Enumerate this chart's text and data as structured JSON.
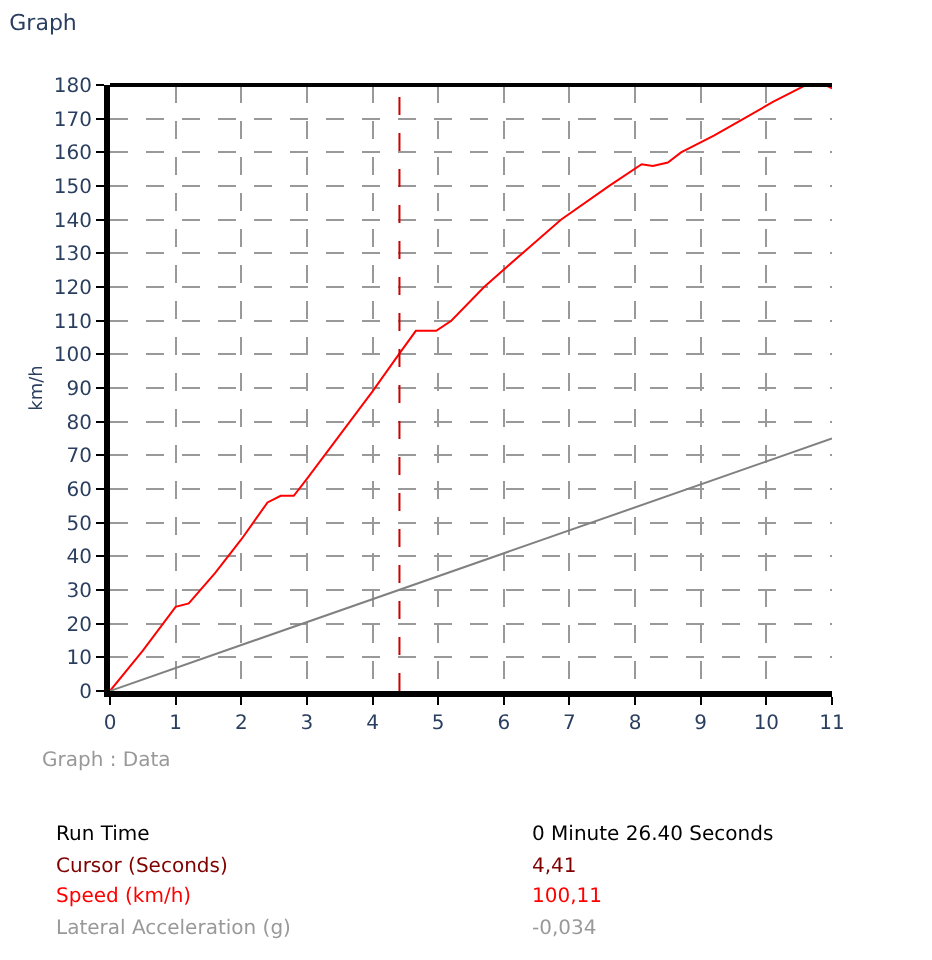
{
  "chart_data": {
    "type": "line",
    "title": "Graph",
    "ylabel": "km/h",
    "x": [
      0,
      0.5,
      1,
      1.2,
      1.6,
      2,
      2.4,
      2.6,
      2.8,
      3,
      3.5,
      4,
      4.4,
      4.66,
      4.97,
      5.2,
      5.7,
      6.28,
      6.87,
      7.6,
      8.1,
      8.27,
      8.5,
      8.7,
      9.2,
      9.65,
      10.1,
      10.6,
      10.9,
      11
    ],
    "series": [
      {
        "color": "#ff0000",
        "values": [
          0,
          12,
          25,
          26,
          35,
          45,
          56,
          58,
          58,
          63,
          76,
          89,
          100,
          107,
          107,
          110,
          120,
          130,
          140,
          150,
          156.5,
          156,
          157,
          160,
          165,
          170,
          175,
          180,
          180,
          179
        ]
      },
      {
        "color": "#808080",
        "x": [
          0,
          11
        ],
        "values": [
          0,
          75
        ]
      }
    ],
    "xlim": [
      0,
      11
    ],
    "xticks": [
      0,
      1,
      2,
      3,
      4,
      5,
      6,
      7,
      8,
      9,
      10,
      11
    ],
    "ylim": [
      0,
      180
    ],
    "yticks": [
      0,
      10,
      20,
      30,
      40,
      50,
      60,
      70,
      80,
      90,
      100,
      110,
      120,
      130,
      140,
      150,
      160,
      170,
      180
    ],
    "grid": true,
    "line_style": "solid",
    "marker": "none",
    "ref_lines": [
      {
        "axis": "x",
        "value": 4.41,
        "color": "#cc0000",
        "line_style": "dashed"
      }
    ],
    "annotations": [
      "Graph : Data",
      "Run Time",
      "0 Minute 26.40 Seconds",
      "Cursor (Seconds)",
      "4,41",
      "Speed (km/h)",
      "100,11",
      "Lateral Acceleration (g)",
      "-0,034"
    ]
  }
}
